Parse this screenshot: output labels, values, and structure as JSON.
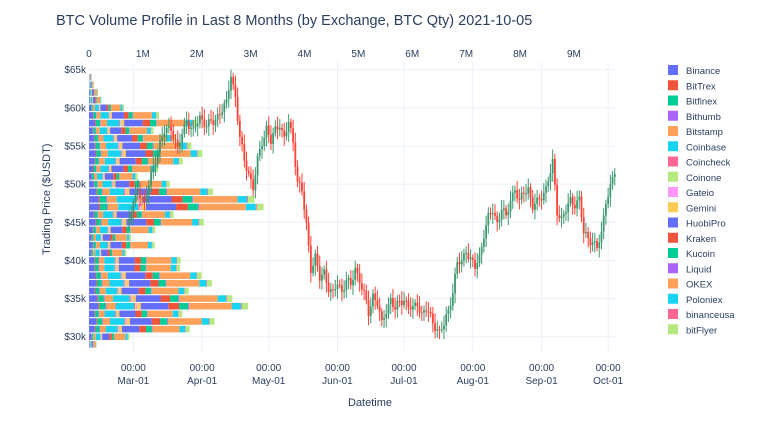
{
  "chart_data": {
    "title": "BTC Volume Profile in Last 8 Months (by Exchange, BTC Qty) 2021-10-05",
    "xlabel": "Datetime",
    "ylabel": "Trading Price ($USDT)",
    "type": "bar",
    "secondary_type": "candlestick",
    "grid": true,
    "legend_position": "right",
    "x_date_ticks": [
      {
        "time": "00:00",
        "date": "Mar-01",
        "day": 0
      },
      {
        "time": "00:00",
        "date": "Apr-01",
        "day": 31
      },
      {
        "time": "00:00",
        "date": "May-01",
        "day": 61
      },
      {
        "time": "00:00",
        "date": "Jun-01",
        "day": 92
      },
      {
        "time": "00:00",
        "date": "Jul-01",
        "day": 122
      },
      {
        "time": "00:00",
        "date": "Aug-01",
        "day": 153
      },
      {
        "time": "00:00",
        "date": "Sep-01",
        "day": 184
      },
      {
        "time": "00:00",
        "date": "Oct-01",
        "day": 214
      }
    ],
    "x_range_days": [
      -20,
      218
    ],
    "volume_ticks": [
      {
        "label": "0",
        "value": 0
      },
      {
        "label": "1M",
        "value": 1000000
      },
      {
        "label": "2M",
        "value": 2000000
      },
      {
        "label": "3M",
        "value": 3000000
      },
      {
        "label": "4M",
        "value": 4000000
      },
      {
        "label": "5M",
        "value": 5000000
      },
      {
        "label": "6M",
        "value": 6000000
      },
      {
        "label": "7M",
        "value": 7000000
      },
      {
        "label": "8M",
        "value": 8000000
      },
      {
        "label": "9M",
        "value": 9000000
      }
    ],
    "volume_range": [
      0,
      9800000
    ],
    "y_ticks": [
      {
        "label": "$30k",
        "value": 30000
      },
      {
        "label": "$35k",
        "value": 35000
      },
      {
        "label": "$40k",
        "value": 40000
      },
      {
        "label": "$45k",
        "value": 45000
      },
      {
        "label": "$50k",
        "value": 50000
      },
      {
        "label": "$55k",
        "value": 55000
      },
      {
        "label": "$60k",
        "value": 60000
      },
      {
        "label": "$65k",
        "value": 65000
      }
    ],
    "ylim": [
      28000,
      66000
    ],
    "legend": [
      {
        "name": "Binance",
        "color": "#636efa"
      },
      {
        "name": "BitTrex",
        "color": "#ef553b"
      },
      {
        "name": "Bitfinex",
        "color": "#00cc96"
      },
      {
        "name": "Bithumb",
        "color": "#ab63fa"
      },
      {
        "name": "Bitstamp",
        "color": "#ffa15a"
      },
      {
        "name": "Coinbase",
        "color": "#19d3f3"
      },
      {
        "name": "Coincheck",
        "color": "#ff6692"
      },
      {
        "name": "Coinone",
        "color": "#b6e880"
      },
      {
        "name": "Gateio",
        "color": "#ff97ff"
      },
      {
        "name": "Gemini",
        "color": "#fecb52"
      },
      {
        "name": "HuobiPro",
        "color": "#636efa"
      },
      {
        "name": "Kraken",
        "color": "#ef553b"
      },
      {
        "name": "Kucoin",
        "color": "#00cc96"
      },
      {
        "name": "Liquid",
        "color": "#ab63fa"
      },
      {
        "name": "OKEX",
        "color": "#ffa15a"
      },
      {
        "name": "Poloniex",
        "color": "#19d3f3"
      },
      {
        "name": "binanceusa",
        "color": "#ff6692"
      },
      {
        "name": "bitFlyer",
        "color": "#b6e880"
      }
    ],
    "segment_weights": [
      0.03,
      0.004,
      0.02,
      0.003,
      0.03,
      0.06,
      0.004,
      0.003,
      0.004,
      0.012,
      0.09,
      0.035,
      0.03,
      0.003,
      0.14,
      0.03,
      0.003,
      0.02
    ],
    "price_bins": [
      29000,
      30000,
      31000,
      32000,
      33000,
      34000,
      35000,
      36000,
      37000,
      38000,
      39000,
      40000,
      41000,
      42000,
      43000,
      44000,
      45000,
      46000,
      47000,
      48000,
      49000,
      50000,
      51000,
      52000,
      53000,
      54000,
      55000,
      56000,
      57000,
      58000,
      59000,
      60000,
      61000,
      62000,
      63000,
      64000
    ],
    "volume_totals": [
      140000,
      750000,
      1870000,
      2330000,
      1730000,
      2950000,
      2660000,
      1850000,
      2280000,
      2090000,
      1690000,
      1700000,
      690000,
      1220000,
      780000,
      1230000,
      2130000,
      1570000,
      3240000,
      3070000,
      2300000,
      1500000,
      900000,
      1280000,
      1740000,
      2100000,
      1900000,
      1600000,
      1200000,
      2000000,
      1300000,
      650000,
      230000,
      170000,
      90000,
      50000
    ],
    "price_path": [
      {
        "day": -2,
        "price": 45200
      },
      {
        "day": 2,
        "price": 49500
      },
      {
        "day": 5,
        "price": 47500
      },
      {
        "day": 8,
        "price": 51000
      },
      {
        "day": 11,
        "price": 54500
      },
      {
        "day": 14,
        "price": 56800
      },
      {
        "day": 17,
        "price": 57500
      },
      {
        "day": 20,
        "price": 54500
      },
      {
        "day": 22,
        "price": 56500
      },
      {
        "day": 24,
        "price": 58500
      },
      {
        "day": 27,
        "price": 56800
      },
      {
        "day": 30,
        "price": 58800
      },
      {
        "day": 33,
        "price": 57800
      },
      {
        "day": 36,
        "price": 58000
      },
      {
        "day": 39,
        "price": 59500
      },
      {
        "day": 42,
        "price": 60500
      },
      {
        "day": 44,
        "price": 64400
      },
      {
        "day": 46,
        "price": 61500
      },
      {
        "day": 48,
        "price": 56000
      },
      {
        "day": 50,
        "price": 53000
      },
      {
        "day": 52,
        "price": 51500
      },
      {
        "day": 54,
        "price": 49500
      },
      {
        "day": 56,
        "price": 53000
      },
      {
        "day": 58,
        "price": 55500
      },
      {
        "day": 60,
        "price": 57500
      },
      {
        "day": 62,
        "price": 55500
      },
      {
        "day": 64,
        "price": 57000
      },
      {
        "day": 66,
        "price": 58000
      },
      {
        "day": 68,
        "price": 56000
      },
      {
        "day": 70,
        "price": 58000
      },
      {
        "day": 72,
        "price": 55500
      },
      {
        "day": 74,
        "price": 50500
      },
      {
        "day": 76,
        "price": 49000
      },
      {
        "day": 78,
        "price": 44500
      },
      {
        "day": 80,
        "price": 39000
      },
      {
        "day": 82,
        "price": 40500
      },
      {
        "day": 84,
        "price": 37500
      },
      {
        "day": 86,
        "price": 38500
      },
      {
        "day": 88,
        "price": 36500
      },
      {
        "day": 90,
        "price": 35500
      },
      {
        "day": 92,
        "price": 37000
      },
      {
        "day": 94,
        "price": 36000
      },
      {
        "day": 96,
        "price": 37500
      },
      {
        "day": 98,
        "price": 36500
      },
      {
        "day": 100,
        "price": 39000
      },
      {
        "day": 102,
        "price": 37500
      },
      {
        "day": 104,
        "price": 35500
      },
      {
        "day": 106,
        "price": 33000
      },
      {
        "day": 108,
        "price": 35500
      },
      {
        "day": 110,
        "price": 34500
      },
      {
        "day": 112,
        "price": 31500
      },
      {
        "day": 114,
        "price": 33500
      },
      {
        "day": 116,
        "price": 35000
      },
      {
        "day": 118,
        "price": 33500
      },
      {
        "day": 120,
        "price": 34500
      },
      {
        "day": 122,
        "price": 35000
      },
      {
        "day": 124,
        "price": 34000
      },
      {
        "day": 126,
        "price": 33500
      },
      {
        "day": 128,
        "price": 34500
      },
      {
        "day": 130,
        "price": 33000
      },
      {
        "day": 132,
        "price": 33500
      },
      {
        "day": 134,
        "price": 32500
      },
      {
        "day": 136,
        "price": 31500
      },
      {
        "day": 138,
        "price": 30500
      },
      {
        "day": 140,
        "price": 31500
      },
      {
        "day": 142,
        "price": 33500
      },
      {
        "day": 144,
        "price": 36000
      },
      {
        "day": 146,
        "price": 39500
      },
      {
        "day": 148,
        "price": 39800
      },
      {
        "day": 150,
        "price": 41500
      },
      {
        "day": 152,
        "price": 40000
      },
      {
        "day": 154,
        "price": 39000
      },
      {
        "day": 156,
        "price": 40500
      },
      {
        "day": 158,
        "price": 43500
      },
      {
        "day": 160,
        "price": 45500
      },
      {
        "day": 162,
        "price": 46500
      },
      {
        "day": 164,
        "price": 45000
      },
      {
        "day": 166,
        "price": 46800
      },
      {
        "day": 168,
        "price": 45500
      },
      {
        "day": 170,
        "price": 48000
      },
      {
        "day": 172,
        "price": 49500
      },
      {
        "day": 174,
        "price": 47500
      },
      {
        "day": 176,
        "price": 49000
      },
      {
        "day": 178,
        "price": 49500
      },
      {
        "day": 180,
        "price": 47000
      },
      {
        "day": 182,
        "price": 47500
      },
      {
        "day": 184,
        "price": 48500
      },
      {
        "day": 186,
        "price": 49500
      },
      {
        "day": 188,
        "price": 51500
      },
      {
        "day": 189,
        "price": 52700
      },
      {
        "day": 191,
        "price": 46500
      },
      {
        "day": 193,
        "price": 45500
      },
      {
        "day": 195,
        "price": 46500
      },
      {
        "day": 197,
        "price": 47800
      },
      {
        "day": 199,
        "price": 47500
      },
      {
        "day": 201,
        "price": 48000
      },
      {
        "day": 203,
        "price": 43500
      },
      {
        "day": 205,
        "price": 43000
      },
      {
        "day": 207,
        "price": 42500
      },
      {
        "day": 209,
        "price": 41500
      },
      {
        "day": 211,
        "price": 43500
      },
      {
        "day": 213,
        "price": 48000
      },
      {
        "day": 215,
        "price": 49500
      },
      {
        "day": 217,
        "price": 51500
      }
    ]
  }
}
